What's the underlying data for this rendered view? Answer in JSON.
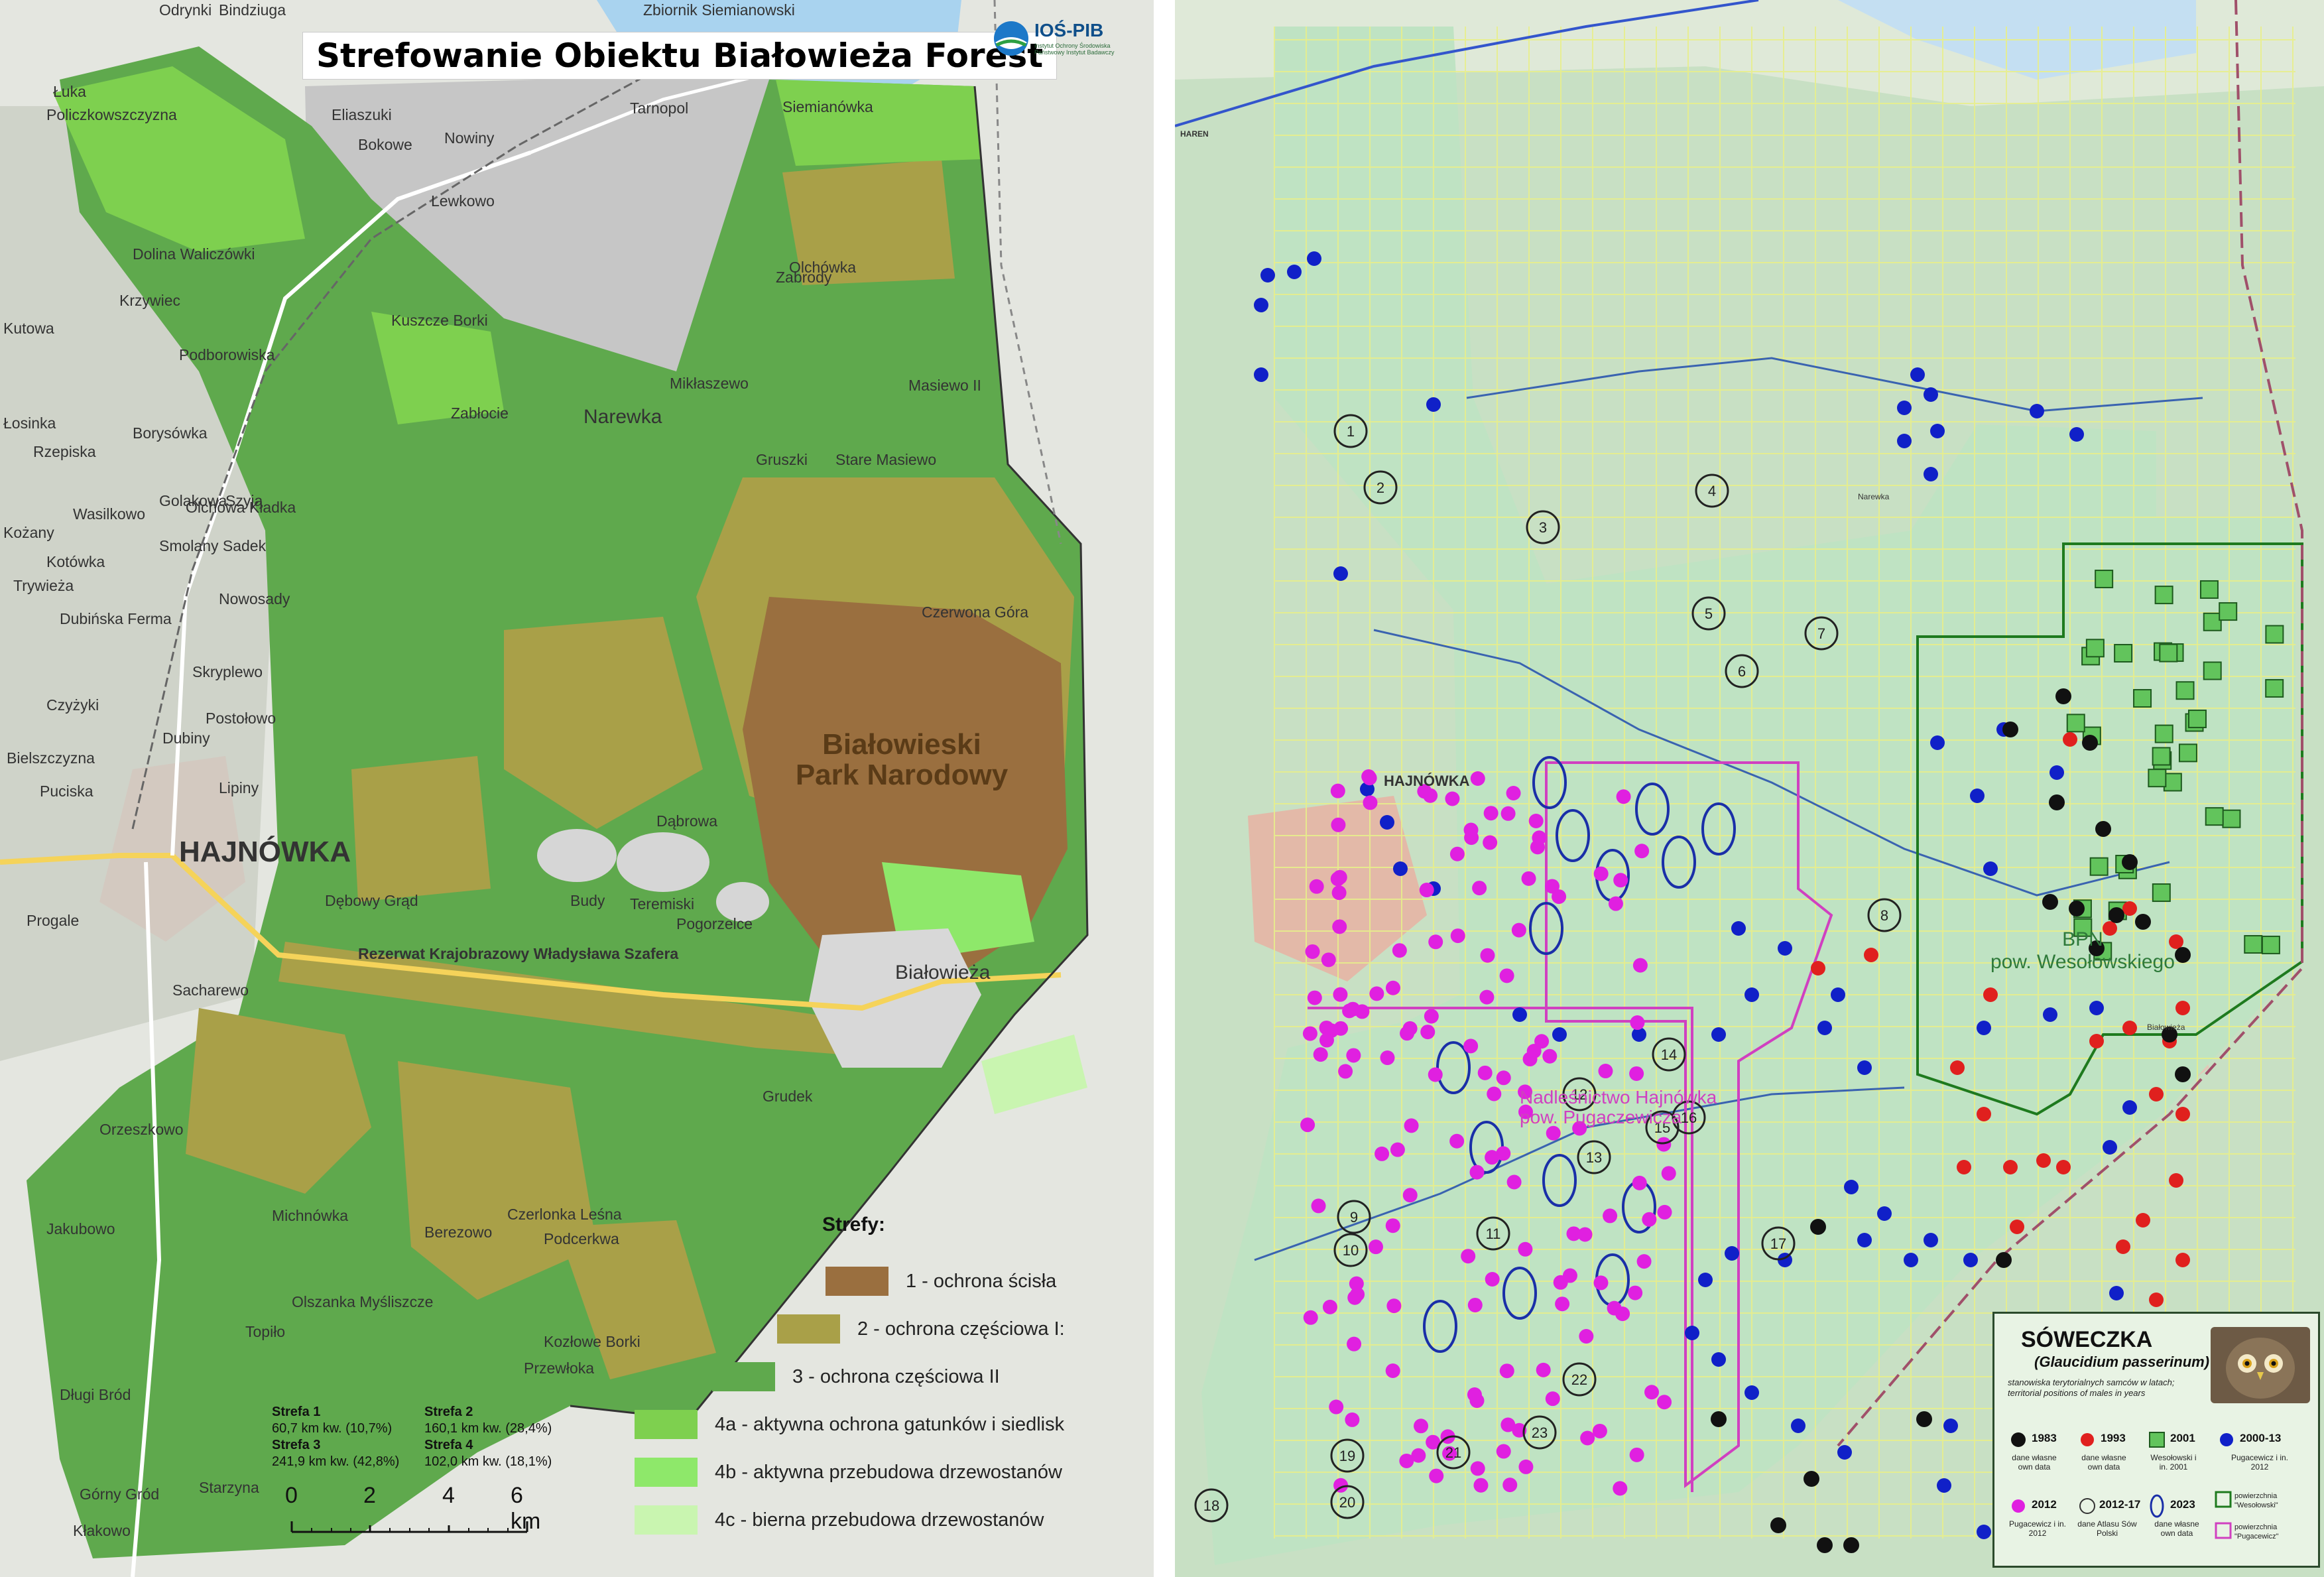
{
  "left_map": {
    "title": "Strefowanie Obiektu Białowieża Forest",
    "logo": {
      "name": "IOŚ-PIB",
      "subtitle": "Instytut Ochrony Środowiska Państwowy Instytut Badawczy"
    },
    "park_label_line1": "Białowieski",
    "park_label_line2": "Park Narodowy",
    "town_label": "HAJNÓWKA",
    "place_labels": [
      "Siemianówka",
      "Narewka",
      "Białowieża",
      "Dolina Waliczówki",
      "Zabłocie",
      "Michnówka",
      "Budy",
      "Podcerkwa",
      "Starzyna",
      "Przewłoka",
      "Teremiski",
      "Pogorzelce",
      "Rezerwat Krajobrazowy Władysława Szafera",
      "Dębowy Grąd",
      "Berezowo",
      "Olszanka Myśliszcze",
      "Kozłowe Borki",
      "Czerwona Góra",
      "Zbiornik Siemianowski",
      "Odrynki",
      "Bindziuga",
      "Krzywiec",
      "Łosinka",
      "Rzepiska",
      "Wasilkowo",
      "Kotówka",
      "Trywieża",
      "Dubińska Ferma",
      "Orzeszkowo",
      "Lipiny",
      "Dubiny",
      "Postołowo",
      "Skryplewo",
      "Czyżyki",
      "Bielszczyzna",
      "Puciska",
      "Progale",
      "Sacharewo",
      "Kutowa",
      "Kożany",
      "Grudek",
      "Lewkowo",
      "Mikłaszewo",
      "Gruszki",
      "Olchówka",
      "Zabrody",
      "Masiewo II",
      "Stare Masiewo",
      "Jakubowo",
      "Topiło",
      "Długi Bród",
      "Górny Gród",
      "Kłakowo",
      "Czerlonka Leśna",
      "Nowosady",
      "Smolany Sadek",
      "Borysówka",
      "Podborowiska",
      "Golakowa",
      "Szyja",
      "Olchowa Kładka",
      "Kuszcze Borki",
      "Eliaszuki",
      "Bokowe",
      "Nowiny",
      "Policzkowszczyzna",
      "Łuka",
      "Tarnopol",
      "Dąbrowa"
    ],
    "legend": {
      "title": "Strefy:",
      "items": [
        {
          "label": "1 - ochrona ścisła",
          "color": "#9a6f3f"
        },
        {
          "label": "2 - ochrona częściowa I:",
          "color": "#a9a048"
        },
        {
          "label": "3 - ochrona częściowa II",
          "color": "#5fa94d"
        },
        {
          "label": "4a - aktywna ochrona gatunków i siedlisk",
          "color": "#7ed04f"
        },
        {
          "label": "4b - aktywna przebudowa drzewostanów",
          "color": "#8ee86a"
        },
        {
          "label": "4c - bierna przebudowa drzewostanów",
          "color": "#c9f5b0"
        }
      ]
    },
    "zone_stats": [
      {
        "name": "Strefa 1",
        "value": "60,7 km kw. (10,7%)"
      },
      {
        "name": "Strefa 2",
        "value": "160,1 km kw. (28,4%)"
      },
      {
        "name": "Strefa 3",
        "value": "241,9 km kw. (42,8%)"
      },
      {
        "name": "Strefa 4",
        "value": "102,0 km kw. (18,1%)"
      }
    ],
    "scale": {
      "labels": [
        "0",
        "2",
        "4",
        "6 km"
      ]
    }
  },
  "right_map": {
    "town_label": "HAJNÓWKA",
    "village_labels": [
      "Narewka",
      "Białowieża",
      "HAREN"
    ],
    "bpn_label_line1": "BPN",
    "bpn_label_line2": "pow. Wesołowskiego",
    "area_label_line1": "Nadleśnictwo Hajnówka",
    "area_label_line2": "pow. Pugaczewicza",
    "site_numbers": [
      "1",
      "2",
      "3",
      "4",
      "5",
      "6",
      "7",
      "8",
      "9",
      "10",
      "11",
      "12",
      "13",
      "14",
      "15",
      "16",
      "17",
      "18",
      "19",
      "20",
      "21",
      "22",
      "23"
    ],
    "legend": {
      "title": "SÓWECZKA",
      "species": "(Glaucidium passerinum)",
      "subtitle": "stanowiska terytorialnych samców w latach; territorial positions of males in years",
      "items": [
        {
          "year": "1983",
          "caption": "dane własne own data",
          "color": "#111111"
        },
        {
          "year": "1993",
          "caption": "dane własne own data",
          "color": "#e0201e"
        },
        {
          "year": "2001",
          "caption": "Wesołowski i in. 2001",
          "color": "#62c45c"
        },
        {
          "year": "2000-13",
          "caption": "Pugacewicz i in. 2012",
          "color": "#1020c8"
        },
        {
          "year": "2012",
          "caption": "Pugacewicz i in. 2012",
          "color": "#e020e0"
        },
        {
          "year": "2012-17",
          "caption": "dane Atlasu Sów Polski",
          "color": "#333333"
        },
        {
          "year": "2023",
          "caption": "dane własne own data",
          "color": "#1a2fa8"
        },
        {
          "year": "powierzchnia \"Wesołowski\"",
          "caption": "",
          "color": "#1e7a1e"
        },
        {
          "year": "powierzchnia \"Pugacewicz\"",
          "caption": "",
          "color": "#d040c0"
        }
      ]
    }
  }
}
